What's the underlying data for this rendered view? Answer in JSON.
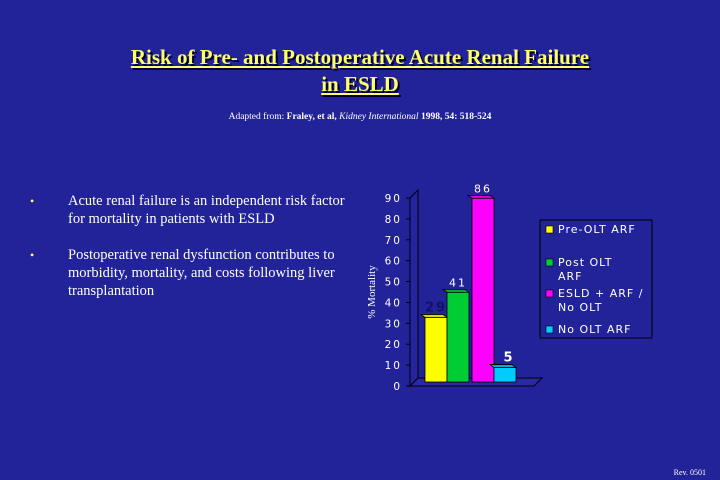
{
  "slide": {
    "title_line1": "Risk of Pre- and Postoperative Acute Renal Failure",
    "title_line2": "in ESLD",
    "source_prefix": "Adapted from: ",
    "source_authors": "Fraley, et al, ",
    "source_journal": "Kidney International",
    "source_citation": " 1998, 54: 518-524",
    "bullets": [
      "Acute renal failure is an independent risk factor for mortality in patients with ESLD",
      "Postoperative renal dysfunction contributes to morbidity, mortality, and costs following liver transplantation"
    ],
    "bullet_symbol": "•",
    "footer": "Rev. 0501"
  },
  "chart_data": {
    "type": "bar",
    "ylabel": "% Mortality",
    "ylim": [
      0,
      90
    ],
    "yticks": [
      0,
      10,
      20,
      30,
      40,
      50,
      60,
      70,
      80,
      90
    ],
    "grid": false,
    "legend_position": "right",
    "categories": [
      "Pre-OLT ARF",
      "Post OLT ARF",
      "ESLD + ARF / No OLT",
      "No OLT ARF"
    ],
    "values": [
      29,
      41,
      86,
      5
    ],
    "data_labels": [
      "29",
      "41",
      "86",
      "5"
    ],
    "colors": [
      "#ffff00",
      "#00cc33",
      "#ff00ff",
      "#00ccff"
    ],
    "legend": [
      {
        "lines": [
          "Pre-OLT ARF"
        ],
        "color": "#ffff00"
      },
      {
        "lines": [
          "Post OLT",
          "ARF"
        ],
        "color": "#00cc33"
      },
      {
        "lines": [
          "ESLD + ARF /",
          "No OLT"
        ],
        "color": "#ff00ff"
      },
      {
        "lines": [
          "No OLT ARF"
        ],
        "color": "#00ccff"
      }
    ]
  }
}
